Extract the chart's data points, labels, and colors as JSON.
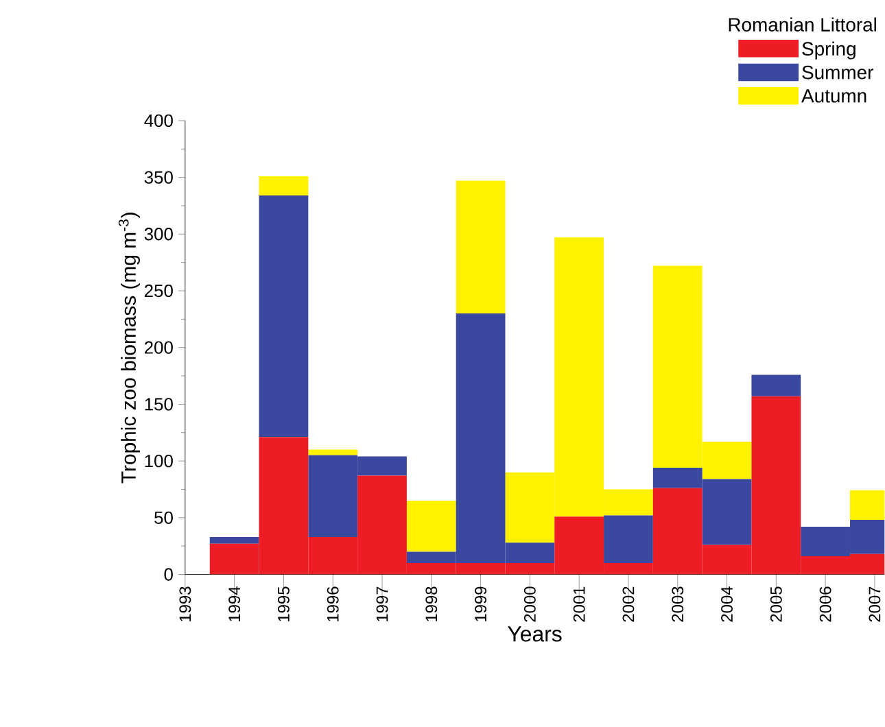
{
  "chart_data": {
    "type": "bar",
    "stacked": true,
    "xlabel": "Years",
    "ylabel": "Trophic zoo biomass (mg m$^{-3}$)",
    "legend_title": "Romanian Littoral",
    "legend": "top right",
    "x": [
      1994,
      1995,
      1996,
      1997,
      1998,
      1999,
      2000,
      2001,
      2002,
      2003,
      2004,
      2005,
      2006,
      2007
    ],
    "xlim": [
      1993,
      2007.2
    ],
    "xticks": [
      1993,
      1994,
      1995,
      1996,
      1997,
      1998,
      1999,
      2000,
      2001,
      2002,
      2003,
      2004,
      2005,
      2006,
      2007
    ],
    "ylim": [
      0,
      400
    ],
    "yticks": [
      0,
      50,
      100,
      150,
      200,
      250,
      300,
      350,
      400
    ],
    "series": [
      {
        "name": "Spring",
        "color": "#ee1c24",
        "values": [
          27,
          121,
          33,
          87,
          10,
          10,
          10,
          51,
          10,
          76,
          26,
          157,
          16,
          18
        ]
      },
      {
        "name": "Summer",
        "color": "#3a48a0",
        "values": [
          6,
          213,
          72,
          17,
          10,
          220,
          18,
          0,
          42,
          18,
          58,
          19,
          26,
          30
        ]
      },
      {
        "name": "Autumn",
        "color": "#fff200",
        "values": [
          0,
          17,
          5,
          0,
          45,
          117,
          62,
          246,
          23,
          178,
          33,
          0,
          0,
          26
        ]
      }
    ]
  }
}
